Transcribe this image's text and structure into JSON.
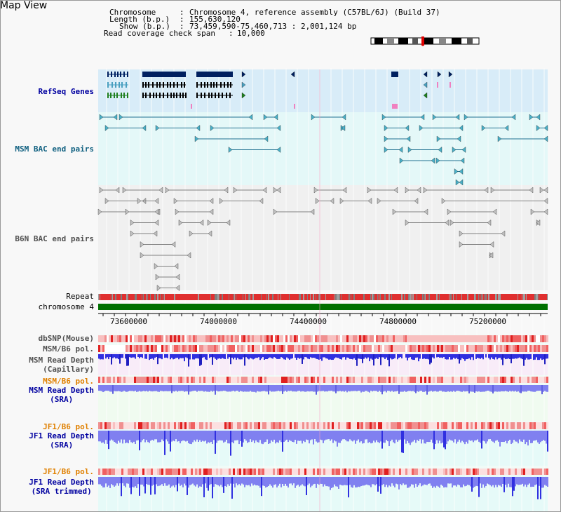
{
  "title": "Map View",
  "header": {
    "chromosome_key": "Chromosome",
    "chromosome_val": "Chromosome 4, reference assembly (C57BL/6J) (Build 37)",
    "length_key": "Length (b.p.)",
    "length_val": "155,630,120",
    "show_key": "Show (b.p.)",
    "show_val": "73,459,590-75,460,713 : 2,001,124 bp",
    "coverage_key": "Read coverage check span",
    "coverage_val": "10,000"
  },
  "tracks": {
    "refseq": "RefSeq Genes",
    "msm_bac": "MSM BAC end pairs",
    "b6n_bac": "B6N BAC end pairs",
    "repeat": "Repeat",
    "chromosome": "chromosome 4",
    "dbsnp": "dbSNP(Mouse)",
    "msm_b6_pol": "MSM/B6 pol.",
    "msm_depth_cap_1": "MSM Read Depth",
    "msm_depth_cap_2": "(Capillary)",
    "msm_b6_pol_2": "MSM/B6 pol.",
    "msm_depth_sra_1": "MSM Read Depth",
    "msm_depth_sra_2": "(SRA)",
    "jf1_b6_pol": "JF1/B6 pol.",
    "jf1_depth_1": "JF1 Read Depth",
    "jf1_depth_2": "(SRA)",
    "jf1_b6_pol_2": "JF1/B6 pol.",
    "jf1_trim_1": "JF1 Read Depth",
    "jf1_trim_2": "(SRA trimmed)"
  },
  "axis_ticks": [
    "73600000",
    "74000000",
    "74400000",
    "74800000",
    "75200000"
  ],
  "colors": {
    "refseq_bg": "#d8ecf8",
    "msm_bac_bg": "#e4f8f8",
    "b6n_bac_bg": "#f0f0f0",
    "gene_dark": "#002060",
    "gene_teal": "#4aa0c0",
    "gene_green": "#208020",
    "msm_bac_line": "#207090",
    "b6n_bac_line": "#808080",
    "repeat_red": "#e03030",
    "chromosome_green": "#007000",
    "depth_blue": "#3030e0",
    "depth_light": "#8080f0",
    "label_blue": "#0000a0",
    "label_teal": "#106080",
    "label_orange": "#e08000",
    "label_grey": "#505050"
  }
}
